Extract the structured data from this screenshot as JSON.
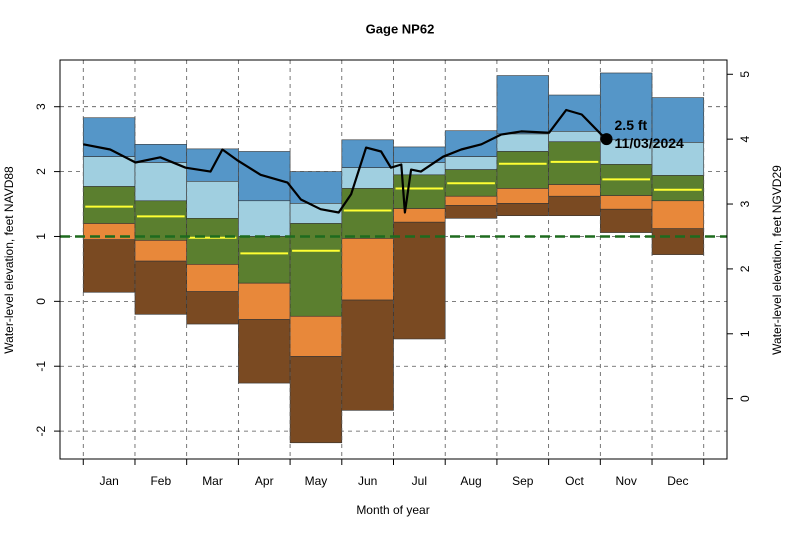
{
  "chart_data": {
    "type": "percentile-band",
    "title": "Gage NP62",
    "xlabel": "Month of year",
    "ylabel": "Water-level elevation, feet NAVD88",
    "y2label": "Water-level elevation, feet NGVD29",
    "categories": [
      "Jan",
      "Feb",
      "Mar",
      "Apr",
      "May",
      "Jun",
      "Jul",
      "Aug",
      "Sep",
      "Oct",
      "Nov",
      "Dec"
    ],
    "xlim": [
      -0.45,
      12.45
    ],
    "ylim": [
      -2.43,
      3.72
    ],
    "yticks": [
      -2,
      -1,
      0,
      1,
      2,
      3
    ],
    "y2lim": [
      -0.93,
      5.22
    ],
    "y2ticks": [
      0,
      1,
      2,
      3,
      4,
      5
    ],
    "grid": true,
    "levels": {
      "max": [
        2.83,
        2.42,
        2.35,
        2.31,
        2.0,
        2.49,
        2.38,
        2.63,
        3.48,
        3.18,
        3.52,
        3.14
      ],
      "p90": [
        2.23,
        2.14,
        1.85,
        1.55,
        1.51,
        2.06,
        2.14,
        2.23,
        2.58,
        2.62,
        2.49,
        2.45
      ],
      "p75": [
        1.77,
        1.55,
        1.28,
        1.0,
        1.2,
        1.74,
        1.95,
        2.03,
        2.31,
        2.46,
        2.11,
        1.94
      ],
      "p25": [
        1.2,
        0.94,
        0.57,
        0.28,
        -0.23,
        0.97,
        1.43,
        1.62,
        1.74,
        1.8,
        1.63,
        1.55
      ],
      "p10": [
        0.95,
        0.62,
        0.15,
        -0.28,
        -0.85,
        0.02,
        1.22,
        1.48,
        1.51,
        1.62,
        1.42,
        1.12
      ],
      "min": [
        0.14,
        -0.2,
        -0.35,
        -1.26,
        -2.18,
        -1.68,
        -0.58,
        1.28,
        1.32,
        1.32,
        1.06,
        0.72
      ]
    },
    "band_colors": [
      "#5596c8",
      "#a0cfe0",
      "#5b7f2f",
      "#e8883a",
      "#7a4a22"
    ],
    "median": [
      1.46,
      1.31,
      0.98,
      0.74,
      0.78,
      1.4,
      1.74,
      1.82,
      2.12,
      2.15,
      1.88,
      1.72
    ],
    "median_color": "#ffff33",
    "reference_level": 1.0,
    "reference_color": "#1e6b1e",
    "current": {
      "color": "#000000",
      "x": [
        0.0,
        0.52,
        1.01,
        1.49,
        1.98,
        2.46,
        2.69,
        2.97,
        3.43,
        3.95,
        4.21,
        4.59,
        4.94,
        5.18,
        5.47,
        5.76,
        5.95,
        6.15,
        6.22,
        6.34,
        6.53,
        6.96,
        7.31,
        7.7,
        8.08,
        8.47,
        9.01,
        9.34,
        9.64,
        10.02,
        10.12
      ],
      "values": [
        2.42,
        2.34,
        2.14,
        2.22,
        2.06,
        2.0,
        2.34,
        2.18,
        1.95,
        1.83,
        1.57,
        1.42,
        1.37,
        1.65,
        2.37,
        2.31,
        2.06,
        2.11,
        1.37,
        2.03,
        2.0,
        2.23,
        2.34,
        2.42,
        2.57,
        2.62,
        2.6,
        2.95,
        2.88,
        2.57,
        2.51
      ]
    },
    "annotation": {
      "x": 10.12,
      "value": 2.5,
      "label": "2.5 ft",
      "date": "11/03/2024"
    }
  }
}
